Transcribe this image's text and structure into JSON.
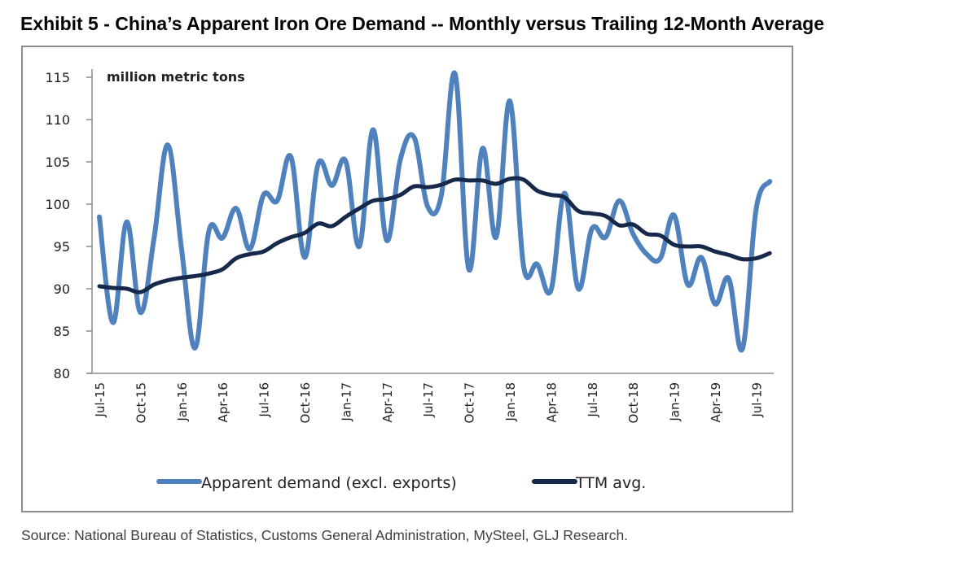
{
  "page": {
    "title": "Exhibit 5 - China’s Apparent Iron Ore Demand -- Monthly versus Trailing 12-Month Average",
    "source": "Source: National Bureau of Statistics, Customs General Administration, MySteel, GLJ Research."
  },
  "chart_data": {
    "type": "line",
    "title": "Exhibit 5 - China’s Apparent Iron Ore Demand -- Monthly versus Trailing 12-Month Average",
    "unit_label": "million metric tons",
    "xlabel": "",
    "ylabel": "million metric tons",
    "ylim": [
      80,
      115
    ],
    "yticks": [
      80,
      85,
      90,
      95,
      100,
      105,
      110,
      115
    ],
    "grid": false,
    "legend_position": "bottom",
    "x": [
      "Jul-15",
      "Aug-15",
      "Sep-15",
      "Oct-15",
      "Nov-15",
      "Dec-15",
      "Jan-16",
      "Feb-16",
      "Mar-16",
      "Apr-16",
      "May-16",
      "Jun-16",
      "Jul-16",
      "Aug-16",
      "Sep-16",
      "Oct-16",
      "Nov-16",
      "Dec-16",
      "Jan-17",
      "Feb-17",
      "Mar-17",
      "Apr-17",
      "May-17",
      "Jun-17",
      "Jul-17",
      "Aug-17",
      "Sep-17",
      "Oct-17",
      "Nov-17",
      "Dec-17",
      "Jan-18",
      "Feb-18",
      "Mar-18",
      "Apr-18",
      "May-18",
      "Jun-18",
      "Jul-18",
      "Aug-18",
      "Sep-18",
      "Oct-18",
      "Nov-18",
      "Dec-18",
      "Jan-19",
      "Feb-19",
      "Mar-19",
      "Apr-19",
      "May-19",
      "Jun-19",
      "Jul-19",
      "Aug-19"
    ],
    "xtick_labels": [
      "Jul-15",
      "Oct-15",
      "Jan-16",
      "Apr-16",
      "Jul-16",
      "Oct-16",
      "Jan-17",
      "Apr-17",
      "Jul-17",
      "Oct-17",
      "Jan-18",
      "Apr-18",
      "Jul-18",
      "Oct-18",
      "Jan-19",
      "Apr-19",
      "Jul-19"
    ],
    "series": [
      {
        "name": "Apparent demand (excl. exports)",
        "color": "#4f81bd",
        "values": [
          98.5,
          86.0,
          97.9,
          87.2,
          96.0,
          107.0,
          94.8,
          83.0,
          96.8,
          96.0,
          99.5,
          94.7,
          101.1,
          100.4,
          105.6,
          93.7,
          104.8,
          102.2,
          105.1,
          95.0,
          108.8,
          95.7,
          105.3,
          107.9,
          99.7,
          101.1,
          115.4,
          92.3,
          106.6,
          96.1,
          112.2,
          92.7,
          92.9,
          89.8,
          101.3,
          90.0,
          97.1,
          96.1,
          100.4,
          96.5,
          94.1,
          93.6,
          98.7,
          90.5,
          93.7,
          88.2,
          91.2,
          82.9,
          99.4,
          102.7
        ]
      },
      {
        "name": "TTM avg.",
        "color": "#17294a",
        "values": [
          90.3,
          90.1,
          90.0,
          89.6,
          90.5,
          91.0,
          91.3,
          91.5,
          91.8,
          92.3,
          93.6,
          94.1,
          94.4,
          95.4,
          96.1,
          96.6,
          97.7,
          97.4,
          98.5,
          99.5,
          100.4,
          100.6,
          101.1,
          102.1,
          102.0,
          102.3,
          102.9,
          102.8,
          102.8,
          102.4,
          103.0,
          102.9,
          101.6,
          101.1,
          100.8,
          99.2,
          98.9,
          98.6,
          97.5,
          97.6,
          96.5,
          96.3,
          95.2,
          95.0,
          95.0,
          94.4,
          94.0,
          93.5,
          93.6,
          94.2
        ]
      }
    ]
  }
}
